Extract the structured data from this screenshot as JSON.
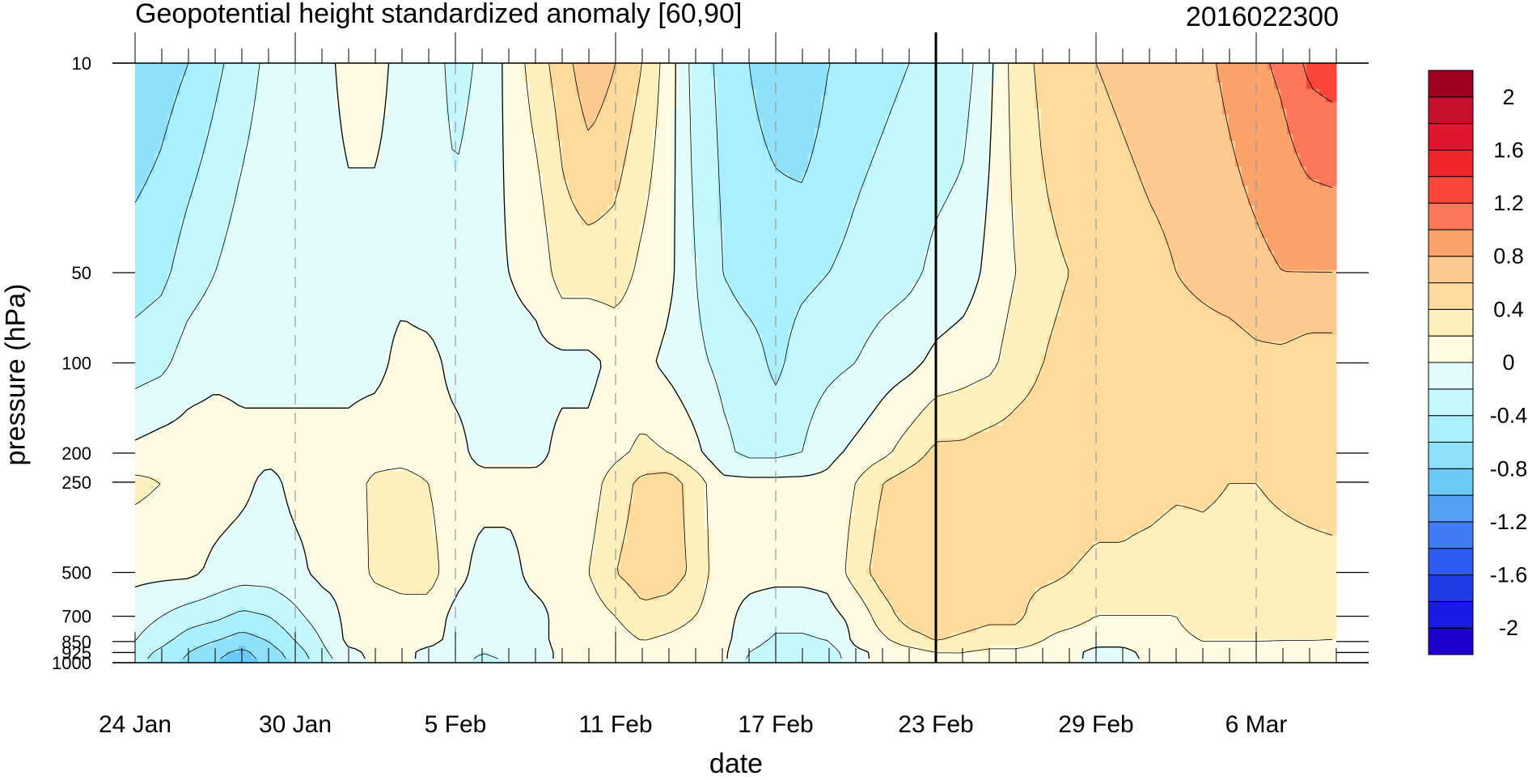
{
  "chart_data": {
    "type": "heatmap",
    "title": "Geopotential height standardized anomaly [60,90]",
    "right_title": "2016022300",
    "xlabel": "date",
    "ylabel": "pressure (hPa)",
    "x": [
      "24 Jan",
      "25 Jan",
      "26 Jan",
      "27 Jan",
      "28 Jan",
      "29 Jan",
      "30 Jan",
      "31 Jan",
      "1 Feb",
      "2 Feb",
      "3 Feb",
      "4 Feb",
      "5 Feb",
      "6 Feb",
      "7 Feb",
      "8 Feb",
      "9 Feb",
      "10 Feb",
      "11 Feb",
      "12 Feb",
      "13 Feb",
      "14 Feb",
      "15 Feb",
      "16 Feb",
      "17 Feb",
      "18 Feb",
      "19 Feb",
      "20 Feb",
      "21 Feb",
      "22 Feb",
      "23 Feb",
      "24 Feb",
      "25 Feb",
      "26 Feb",
      "27 Feb",
      "28 Feb",
      "29 Feb",
      "1 Mar",
      "2 Mar",
      "3 Mar",
      "4 Mar",
      "5 Mar",
      "6 Mar",
      "7 Mar",
      "8 Mar",
      "9 Mar"
    ],
    "x_tick_labels": [
      "24 Jan",
      "30 Jan",
      "5 Feb",
      "11 Feb",
      "17 Feb",
      "23 Feb",
      "29 Feb",
      "6 Mar"
    ],
    "y_levels": [
      10,
      50,
      100,
      200,
      250,
      500,
      700,
      850,
      925,
      1000
    ],
    "y_tick_labels": [
      "10",
      "50",
      "100",
      "200",
      "250",
      "500",
      "700",
      "850",
      "925",
      "1000"
    ],
    "y_scale": "log",
    "y_reversed": true,
    "analysis_date": "23 Feb",
    "colorbar": {
      "levels": [
        -2.2,
        -2,
        -1.8,
        -1.6,
        -1.4,
        -1.2,
        -1,
        -0.8,
        -0.6,
        -0.4,
        -0.2,
        0,
        0.2,
        0.4,
        0.6,
        0.8,
        1,
        1.2,
        1.4,
        1.6,
        1.8,
        2,
        2.2
      ],
      "colors": [
        "#1e00cc",
        "#1a1ae6",
        "#1f3de6",
        "#2f5cf0",
        "#3f7cf5",
        "#55a1f7",
        "#6cc9f7",
        "#8fe0fa",
        "#aaf0fc",
        "#c4f8fc",
        "#e2fcfc",
        "#fdfce2",
        "#fdf0bd",
        "#fcdb9d",
        "#fcc98f",
        "#fca36c",
        "#fc7858",
        "#fa4638",
        "#f0262b",
        "#e0152e",
        "#c8102e",
        "#a00020"
      ],
      "tick_values": [
        -2,
        -1.6,
        -1.2,
        -0.8,
        -0.4,
        0,
        0.4,
        0.8,
        1.2,
        1.6,
        2
      ],
      "tick_labels": [
        "-2",
        "-1.6",
        "-1.2",
        "-0.8",
        "-0.4",
        "0",
        "0.4",
        "0.8",
        "1.2",
        "1.6",
        "2"
      ]
    },
    "values": [
      [
        -0.8,
        -0.7,
        -0.6,
        -0.45,
        -0.3,
        -0.15,
        -0.05,
        -0.05,
        0.05,
        0.05,
        -0.05,
        -0.05,
        -0.3,
        -0.15,
        0.05,
        0.3,
        0.5,
        0.75,
        0.6,
        0.4,
        0.1,
        -0.3,
        -0.45,
        -0.6,
        -0.7,
        -0.8,
        -0.6,
        -0.5,
        -0.45,
        -0.4,
        -0.35,
        -0.3,
        -0.05,
        0.3,
        0.45,
        0.55,
        0.6,
        0.65,
        0.7,
        0.7,
        0.75,
        0.85,
        0.95,
        1.05,
        1.25,
        1.3
      ],
      [
        -0.5,
        -0.45,
        -0.3,
        -0.2,
        -0.1,
        -0.05,
        -0.05,
        -0.05,
        -0.05,
        -0.05,
        -0.05,
        -0.1,
        -0.1,
        -0.05,
        0.0,
        0.05,
        0.3,
        0.3,
        0.3,
        0.15,
        0.05,
        -0.2,
        -0.4,
        -0.5,
        -0.5,
        -0.45,
        -0.4,
        -0.35,
        -0.3,
        -0.25,
        -0.15,
        -0.1,
        0.05,
        0.2,
        0.35,
        0.4,
        0.45,
        0.5,
        0.55,
        0.6,
        0.65,
        0.7,
        0.75,
        0.8,
        0.8,
        0.8
      ],
      [
        -0.3,
        -0.25,
        -0.1,
        -0.05,
        -0.05,
        -0.05,
        -0.05,
        -0.05,
        -0.05,
        -0.05,
        0.05,
        0.05,
        -0.05,
        -0.05,
        -0.05,
        -0.05,
        -0.05,
        -0.05,
        0.05,
        0.05,
        -0.05,
        -0.15,
        -0.25,
        -0.3,
        -0.45,
        -0.3,
        -0.25,
        -0.2,
        -0.1,
        -0.05,
        0.05,
        0.1,
        0.15,
        0.3,
        0.4,
        0.45,
        0.45,
        0.45,
        0.5,
        0.5,
        0.5,
        0.5,
        0.55,
        0.55,
        0.5,
        0.5
      ],
      [
        0.05,
        0.1,
        0.1,
        0.1,
        0.05,
        0.05,
        0.05,
        0.05,
        0.05,
        0.1,
        0.1,
        0.05,
        0.05,
        -0.05,
        -0.05,
        -0.05,
        0.05,
        0.05,
        0.15,
        0.25,
        0.2,
        0.05,
        -0.15,
        -0.25,
        -0.25,
        -0.2,
        -0.05,
        0.05,
        0.15,
        0.3,
        0.45,
        0.45,
        0.5,
        0.5,
        0.5,
        0.5,
        0.5,
        0.5,
        0.5,
        0.5,
        0.55,
        0.55,
        0.55,
        0.5,
        0.5,
        0.5
      ],
      [
        0.25,
        0.2,
        0.15,
        0.1,
        0.05,
        -0.05,
        0.05,
        0.05,
        0.1,
        0.25,
        0.3,
        0.2,
        0.05,
        0.05,
        0.05,
        0.05,
        0.05,
        0.1,
        0.3,
        0.45,
        0.5,
        0.3,
        0.05,
        0.05,
        0.05,
        0.05,
        0.05,
        0.2,
        0.4,
        0.5,
        0.55,
        0.6,
        0.6,
        0.55,
        0.55,
        0.55,
        0.5,
        0.5,
        0.5,
        0.45,
        0.45,
        0.4,
        0.4,
        0.45,
        0.5,
        0.55
      ],
      [
        0.05,
        0.05,
        0.05,
        -0.05,
        -0.1,
        -0.1,
        -0.05,
        0.05,
        0.05,
        0.25,
        0.3,
        0.3,
        0.05,
        -0.05,
        -0.05,
        0.05,
        0.05,
        0.2,
        0.4,
        0.5,
        0.5,
        0.35,
        0.05,
        0.05,
        0.05,
        0.05,
        0.05,
        0.3,
        0.5,
        0.55,
        0.6,
        0.55,
        0.5,
        0.45,
        0.45,
        0.4,
        0.35,
        0.35,
        0.3,
        0.25,
        0.3,
        0.3,
        0.3,
        0.3,
        0.3,
        0.3
      ],
      [
        -0.1,
        -0.2,
        -0.3,
        -0.35,
        -0.45,
        -0.4,
        -0.25,
        -0.1,
        0.05,
        0.05,
        0.1,
        0.1,
        -0.05,
        -0.05,
        -0.05,
        -0.05,
        0.05,
        0.1,
        0.2,
        0.35,
        0.3,
        0.2,
        0.05,
        -0.05,
        -0.1,
        -0.1,
        -0.05,
        0.05,
        0.3,
        0.5,
        0.55,
        0.5,
        0.45,
        0.45,
        0.3,
        0.3,
        0.2,
        0.2,
        0.2,
        0.2,
        0.3,
        0.3,
        0.3,
        0.25,
        0.25,
        0.2
      ],
      [
        -0.2,
        -0.35,
        -0.5,
        -0.6,
        -0.7,
        -0.6,
        -0.4,
        -0.2,
        0.05,
        0.05,
        0.05,
        0.05,
        -0.05,
        -0.1,
        -0.05,
        -0.05,
        0.05,
        0.05,
        0.1,
        0.2,
        0.15,
        0.1,
        0.05,
        -0.1,
        -0.25,
        -0.25,
        -0.2,
        0.05,
        0.15,
        0.3,
        0.4,
        0.35,
        0.3,
        0.3,
        0.2,
        0.1,
        0.05,
        0.05,
        0.1,
        0.15,
        0.2,
        0.2,
        0.2,
        0.2,
        0.2,
        0.2
      ],
      [
        -0.3,
        -0.45,
        -0.6,
        -0.75,
        -0.85,
        -0.7,
        -0.5,
        -0.25,
        -0.05,
        0.05,
        0.05,
        -0.05,
        -0.1,
        -0.2,
        -0.15,
        -0.1,
        0.05,
        0.05,
        0.05,
        0.1,
        0.1,
        0.05,
        0.05,
        -0.2,
        -0.35,
        -0.35,
        -0.3,
        -0.05,
        0.05,
        0.1,
        0.2,
        0.2,
        0.15,
        0.15,
        0.1,
        0.05,
        -0.05,
        -0.05,
        0.05,
        0.1,
        0.15,
        0.15,
        0.15,
        0.15,
        0.15,
        0.15
      ],
      [
        -0.35,
        -0.5,
        -0.65,
        -0.8,
        -0.9,
        -0.75,
        -0.55,
        -0.3,
        -0.1,
        0.05,
        0.05,
        -0.05,
        -0.15,
        -0.25,
        -0.2,
        -0.1,
        0.05,
        0.05,
        0.05,
        0.1,
        0.1,
        0.05,
        0.05,
        -0.25,
        -0.4,
        -0.4,
        -0.35,
        -0.05,
        0.05,
        0.05,
        0.1,
        0.15,
        0.15,
        0.1,
        0.05,
        0.05,
        -0.05,
        -0.1,
        0.05,
        0.1,
        0.15,
        0.15,
        0.15,
        0.15,
        0.15,
        0.15
      ]
    ]
  }
}
